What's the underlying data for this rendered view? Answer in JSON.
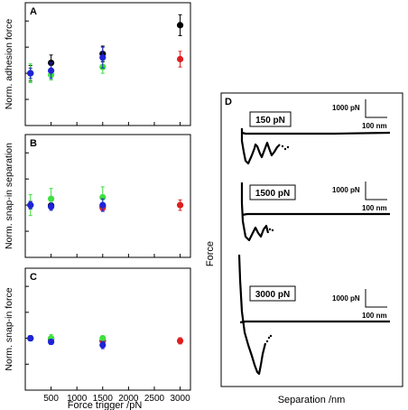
{
  "figure": {
    "shared_xlabel": "Force trigger /pN",
    "trace_panel": {
      "letter": "D",
      "ylabel": "Force",
      "xlabel": "Separation /nm",
      "traces": [
        {
          "label": "150 pN",
          "scale_force": "1000 pN",
          "scale_sep": "100 nm"
        },
        {
          "label": "1500 pN",
          "scale_force": "1000 pN",
          "scale_sep": "100 nm"
        },
        {
          "label": "3000 pN",
          "scale_force": "1000 pN",
          "scale_sep": "100 nm"
        }
      ]
    }
  },
  "colors": {
    "black": "#000000",
    "blue": "#1f23d6",
    "green": "#3ee03e",
    "red": "#e01e1e",
    "axis": "#000000"
  },
  "chart_data": [
    {
      "type": "scatter",
      "letter": "A",
      "xlabel": "",
      "ylabel": "Norm. adhesion force",
      "xlim": [
        0,
        3200
      ],
      "ylim": [
        0,
        2.35
      ],
      "xticks": [
        500,
        1000,
        1500,
        2000,
        2500,
        3000
      ],
      "yticks": [
        0,
        0.5,
        1,
        1.5,
        2
      ],
      "tick_labels_shown": false,
      "series": [
        {
          "color": "black",
          "points": [
            [
              100,
              1.0,
              0.15
            ],
            [
              500,
              1.2,
              0.15
            ],
            [
              1500,
              1.37,
              0.15
            ],
            [
              3000,
              1.92,
              0.2
            ]
          ]
        },
        {
          "color": "red",
          "points": [
            [
              3000,
              1.27,
              0.15
            ]
          ]
        },
        {
          "color": "green",
          "points": [
            [
              100,
              1.0,
              0.18
            ],
            [
              500,
              0.97,
              0.1
            ],
            [
              1500,
              1.12,
              0.12
            ]
          ]
        },
        {
          "color": "blue",
          "points": [
            [
              100,
              1.0,
              0.1
            ],
            [
              500,
              1.05,
              0.15
            ],
            [
              1500,
              1.3,
              0.2
            ]
          ]
        }
      ]
    },
    {
      "type": "scatter",
      "letter": "B",
      "xlabel": "",
      "ylabel": "Norm. snap-in separation",
      "xlim": [
        0,
        3200
      ],
      "ylim": [
        0,
        2.35
      ],
      "xticks": [
        500,
        1000,
        1500,
        2000,
        2500,
        3000
      ],
      "yticks": [
        0,
        0.5,
        1,
        1.5,
        2
      ],
      "tick_labels_shown": false,
      "series": [
        {
          "color": "black",
          "points": [
            [
              100,
              1.0,
              0.07
            ],
            [
              500,
              0.99,
              0.05
            ],
            [
              1500,
              0.97,
              0.05
            ]
          ]
        },
        {
          "color": "red",
          "points": [
            [
              1500,
              0.95,
              0.05
            ],
            [
              3000,
              1.0,
              0.1
            ]
          ]
        },
        {
          "color": "green",
          "points": [
            [
              100,
              1.0,
              0.2
            ],
            [
              500,
              1.12,
              0.2
            ],
            [
              1500,
              1.15,
              0.2
            ]
          ]
        },
        {
          "color": "blue",
          "points": [
            [
              100,
              1.0,
              0.07
            ],
            [
              500,
              0.97,
              0.07
            ],
            [
              1500,
              1.0,
              0.12
            ]
          ]
        }
      ]
    },
    {
      "type": "scatter",
      "letter": "C",
      "xlabel": "Force trigger /pN",
      "ylabel": "Norm. snap-in force",
      "xlim": [
        0,
        3200
      ],
      "ylim": [
        0,
        2.35
      ],
      "xticks": [
        500,
        1000,
        1500,
        2000,
        2500,
        3000
      ],
      "yticks": [
        0,
        0.5,
        1,
        1.5,
        2
      ],
      "tick_labels_shown": true,
      "series": [
        {
          "color": "black",
          "points": [
            [
              100,
              1.0,
              0.05
            ],
            [
              500,
              0.98,
              0.05
            ],
            [
              1500,
              0.95,
              0.05
            ]
          ]
        },
        {
          "color": "red",
          "points": [
            [
              1500,
              0.95,
              0.05
            ],
            [
              3000,
              0.95,
              0.06
            ]
          ]
        },
        {
          "color": "green",
          "points": [
            [
              100,
              1.0,
              0.05
            ],
            [
              500,
              1.0,
              0.07
            ],
            [
              1500,
              1.0,
              0.05
            ]
          ]
        },
        {
          "color": "blue",
          "points": [
            [
              100,
              1.0,
              0.05
            ],
            [
              500,
              0.93,
              0.05
            ],
            [
              1500,
              0.87,
              0.07
            ]
          ]
        }
      ]
    }
  ]
}
